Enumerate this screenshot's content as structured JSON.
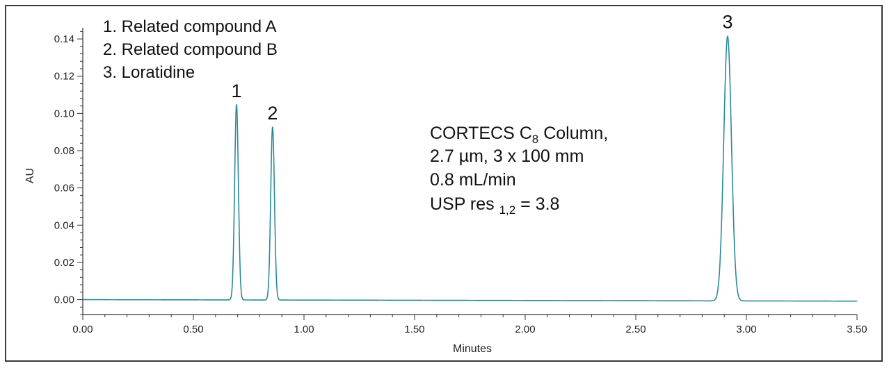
{
  "chart_data": {
    "type": "line",
    "xlabel": "Minutes",
    "ylabel": "AU",
    "xlim": [
      0,
      3.5
    ],
    "ylim": [
      -0.008,
      0.146
    ],
    "x_ticks": [
      "0.00",
      "0.50",
      "1.00",
      "1.50",
      "2.00",
      "2.50",
      "3.00",
      "3.50"
    ],
    "y_ticks": [
      "0.00",
      "0.02",
      "0.04",
      "0.06",
      "0.08",
      "0.10",
      "0.12",
      "0.14"
    ],
    "line_color": "#2a8a9a",
    "baseline": {
      "start": 0.0,
      "end": -0.0008
    },
    "peaks": [
      {
        "label": "1",
        "time": 0.695,
        "height": 0.105,
        "sigma": 0.0085
      },
      {
        "label": "2",
        "time": 0.858,
        "height": 0.093,
        "sigma": 0.0085
      },
      {
        "label": "3",
        "time": 2.915,
        "height": 0.142,
        "sigma": 0.0175
      }
    ],
    "legend": [
      "1. Related compound A",
      "2. Related compound B",
      "3. Loratidine"
    ],
    "annotation": {
      "line1_main": "CORTECS C",
      "line1_sub": "8",
      "line1_tail": " Column,",
      "line2": "2.7 µm, 3 x 100 mm",
      "line3": "0.8 mL/min",
      "line4_main": "USP res ",
      "line4_sub": "1,2",
      "line4_tail": " = 3.8"
    }
  }
}
